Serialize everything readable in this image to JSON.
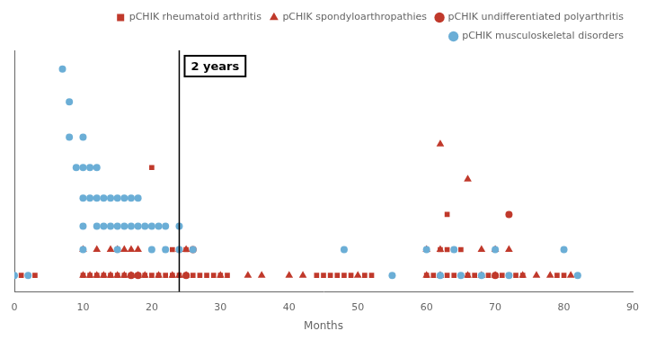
{
  "chart_data": {
    "type": "scatter",
    "xlabel": "Months",
    "xlim": [
      0,
      90
    ],
    "xticks": [
      0,
      10,
      20,
      30,
      40,
      50,
      60,
      70,
      80,
      90
    ],
    "ylim": [
      -0.3,
      10.0
    ],
    "tick_labels": "x",
    "grid": false,
    "legend": "upper right",
    "annotations": [
      {
        "x": 24,
        "text": "2 years"
      }
    ],
    "series": [
      {
        "name": "pCHIK rheumatoid arthritis",
        "color": "#c0392b",
        "marker": "square",
        "x": [
          1,
          3,
          10,
          11,
          12,
          13,
          14,
          15,
          16,
          17,
          18,
          19,
          20,
          21,
          22,
          23,
          24,
          25,
          26,
          27,
          28,
          29,
          30,
          31,
          44,
          45,
          46,
          47,
          48,
          49,
          51,
          52,
          60,
          61,
          62,
          63,
          64,
          65,
          66,
          67,
          68,
          69,
          70,
          71,
          72,
          73,
          74,
          79,
          80,
          22,
          23,
          24,
          25,
          62,
          63,
          64,
          65,
          63,
          20
        ],
        "values": [
          0.4,
          0.4,
          0.4,
          0.4,
          0.4,
          0.4,
          0.4,
          0.4,
          0.4,
          0.4,
          0.4,
          0.4,
          0.4,
          0.4,
          0.4,
          0.4,
          0.4,
          0.4,
          0.4,
          0.4,
          0.4,
          0.4,
          0.4,
          0.4,
          0.4,
          0.4,
          0.4,
          0.4,
          0.4,
          0.4,
          0.4,
          0.4,
          0.4,
          0.4,
          0.4,
          0.4,
          0.4,
          0.4,
          0.4,
          0.4,
          0.4,
          0.4,
          0.4,
          0.4,
          0.4,
          0.4,
          0.4,
          0.4,
          0.4,
          1.5,
          1.5,
          1.5,
          1.5,
          1.5,
          1.5,
          1.5,
          1.5,
          3.0,
          5.0
        ]
      },
      {
        "name": "pCHIK spondyloarthropathies",
        "color": "#c0392b",
        "marker": "triangle",
        "x": [
          10,
          11,
          12,
          13,
          14,
          15,
          16,
          17,
          18,
          19,
          21,
          23,
          24,
          25,
          30,
          34,
          36,
          40,
          42,
          50,
          60,
          62,
          66,
          68,
          70,
          74,
          76,
          78,
          81,
          10,
          12,
          14,
          15,
          16,
          17,
          18,
          24,
          25,
          60,
          62,
          68,
          70,
          72,
          62,
          66
        ],
        "values": [
          0.4,
          0.4,
          0.4,
          0.4,
          0.4,
          0.4,
          0.4,
          0.4,
          0.4,
          0.4,
          0.4,
          0.4,
          0.4,
          0.4,
          0.4,
          0.4,
          0.4,
          0.4,
          0.4,
          0.4,
          0.4,
          0.4,
          0.4,
          0.4,
          0.4,
          0.4,
          0.4,
          0.4,
          0.4,
          1.5,
          1.5,
          1.5,
          1.5,
          1.5,
          1.5,
          1.5,
          1.5,
          1.5,
          1.5,
          1.5,
          1.5,
          1.5,
          1.5,
          6.0,
          4.5
        ]
      },
      {
        "name": "pCHIK undifferentiated polyarthritis",
        "color": "#c0392b",
        "marker": "circle",
        "x": [
          17,
          18,
          25,
          26,
          70,
          72
        ],
        "values": [
          0.4,
          0.4,
          0.4,
          1.5,
          0.4,
          3.0
        ]
      },
      {
        "name": "pCHIK musculoskeletal disorders",
        "color": "#6baed6",
        "marker": "circle",
        "x": [
          0,
          2,
          7,
          8,
          8,
          9,
          10,
          10,
          10,
          10,
          10,
          11,
          11,
          12,
          12,
          12,
          13,
          13,
          14,
          14,
          15,
          15,
          15,
          16,
          16,
          17,
          17,
          18,
          18,
          19,
          20,
          20,
          21,
          22,
          22,
          24,
          24,
          26,
          48,
          55,
          60,
          62,
          64,
          65,
          68,
          70,
          72,
          80,
          82
        ],
        "values": [
          0.4,
          0.4,
          9.2,
          7.8,
          6.3,
          5.0,
          6.3,
          5.0,
          3.7,
          2.5,
          1.5,
          5.0,
          3.7,
          5.0,
          3.7,
          2.5,
          3.7,
          2.5,
          3.7,
          2.5,
          3.7,
          2.5,
          1.5,
          3.7,
          2.5,
          3.7,
          2.5,
          3.7,
          2.5,
          2.5,
          2.5,
          1.5,
          2.5,
          2.5,
          1.5,
          2.5,
          1.5,
          1.5,
          1.5,
          0.4,
          1.5,
          0.4,
          1.5,
          0.4,
          0.4,
          1.5,
          0.4,
          1.5,
          0.4
        ]
      }
    ]
  }
}
